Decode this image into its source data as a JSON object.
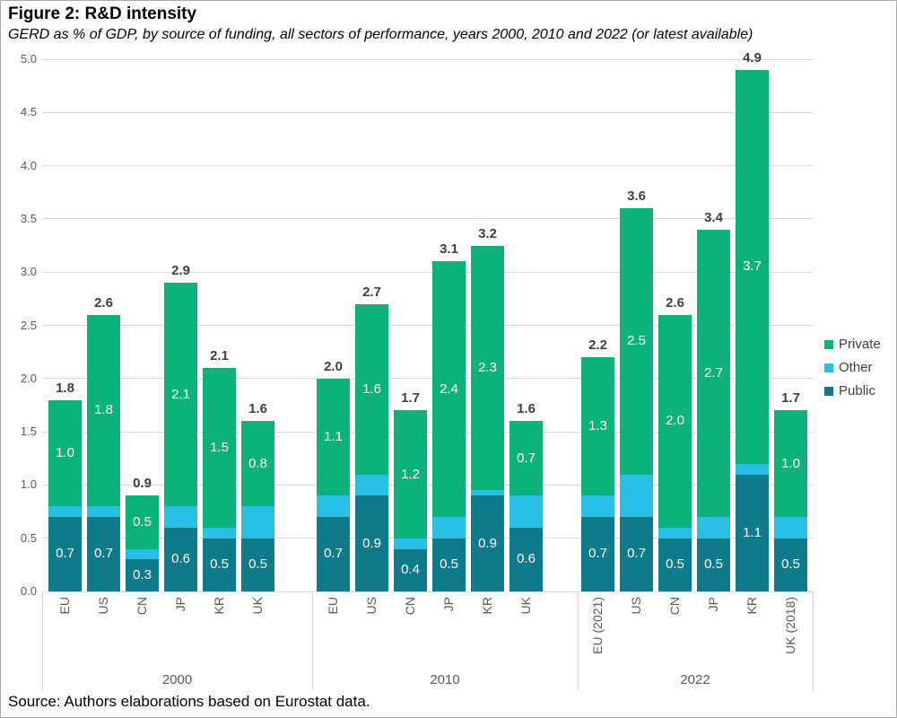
{
  "header": {
    "title": "Figure 2: R&D intensity",
    "subtitle": "GERD as % of GDP, by source of funding, all sectors of performance, years 2000, 2010 and 2022 (or latest available)"
  },
  "source_note": "Source: Authors elaborations based on Eurostat data.",
  "legend": [
    {
      "label": "Private",
      "color": "#0db17c"
    },
    {
      "label": "Other",
      "color": "#29bfe4"
    },
    {
      "label": "Public",
      "color": "#0f7a89"
    }
  ],
  "chart_data": {
    "type": "bar",
    "stacked": true,
    "title": "Figure 2: R&D intensity",
    "subtitle": "GERD as % of GDP, by source of funding, all sectors of performance, years 2000, 2010 and 2022 (or latest available)",
    "ylim": [
      0,
      5
    ],
    "ytick_step": 0.5,
    "grid": true,
    "legend_position": "right",
    "stack_order_bottom_to_top": [
      "Public",
      "Other",
      "Private"
    ],
    "segment_labels_shown": [
      "Public",
      "Private"
    ],
    "colors": {
      "Private": "#0db17c",
      "Other": "#29bfe4",
      "Public": "#0f7a89",
      "gridline": "#dadada",
      "axis_text": "#595959",
      "total_label": "#3f3f3f"
    },
    "groups": [
      {
        "year": "2000",
        "bars": [
          {
            "country": "EU",
            "Public": 0.7,
            "Other": 0.1,
            "Private": 1.0,
            "total": 1.8
          },
          {
            "country": "US",
            "Public": 0.7,
            "Other": 0.1,
            "Private": 1.8,
            "total": 2.6
          },
          {
            "country": "CN",
            "Public": 0.3,
            "Other": 0.1,
            "Private": 0.5,
            "total": 0.9
          },
          {
            "country": "JP",
            "Public": 0.6,
            "Other": 0.2,
            "Private": 2.1,
            "total": 2.9
          },
          {
            "country": "KR",
            "Public": 0.5,
            "Other": 0.1,
            "Private": 1.5,
            "total": 2.1
          },
          {
            "country": "UK",
            "Public": 0.5,
            "Other": 0.3,
            "Private": 0.8,
            "total": 1.6
          }
        ]
      },
      {
        "year": "2010",
        "bars": [
          {
            "country": "EU",
            "Public": 0.7,
            "Other": 0.2,
            "Private": 1.1,
            "total": 2.0
          },
          {
            "country": "US",
            "Public": 0.9,
            "Other": 0.2,
            "Private": 1.6,
            "total": 2.7
          },
          {
            "country": "CN",
            "Public": 0.4,
            "Other": 0.1,
            "Private": 1.2,
            "total": 1.7
          },
          {
            "country": "JP",
            "Public": 0.5,
            "Other": 0.2,
            "Private": 2.4,
            "total": 3.1
          },
          {
            "country": "KR",
            "Public": 0.9,
            "Other": 0.05,
            "Private": 2.3,
            "total": 3.2
          },
          {
            "country": "UK",
            "Public": 0.6,
            "Other": 0.3,
            "Private": 0.7,
            "total": 1.6
          }
        ]
      },
      {
        "year": "2022",
        "bars": [
          {
            "country": "EU (2021)",
            "Public": 0.7,
            "Other": 0.2,
            "Private": 1.3,
            "total": 2.2
          },
          {
            "country": "US",
            "Public": 0.7,
            "Other": 0.4,
            "Private": 2.5,
            "total": 3.6
          },
          {
            "country": "CN",
            "Public": 0.5,
            "Other": 0.1,
            "Private": 2.0,
            "total": 2.6
          },
          {
            "country": "JP",
            "Public": 0.5,
            "Other": 0.2,
            "Private": 2.7,
            "total": 3.4
          },
          {
            "country": "KR",
            "Public": 1.1,
            "Other": 0.1,
            "Private": 3.7,
            "total": 4.9
          },
          {
            "country": "UK (2018)",
            "Public": 0.5,
            "Other": 0.2,
            "Private": 1.0,
            "total": 1.7
          }
        ]
      }
    ]
  }
}
